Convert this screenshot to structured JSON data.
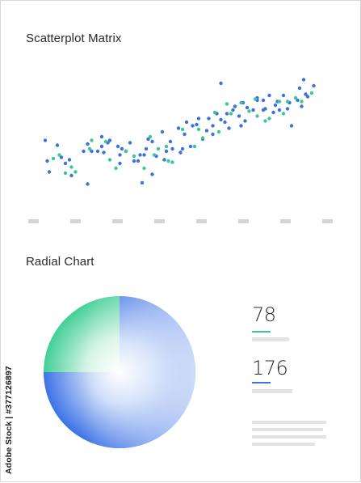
{
  "scatter": {
    "title": "Scatterplot Matrix",
    "colors": {
      "blue": "#3a72e0",
      "green": "#3cc894",
      "tick": "#d4d4d4"
    }
  },
  "radial": {
    "title": "Radial Chart",
    "colors": {
      "green": "#43cf96",
      "blue": "#3d72e6"
    }
  },
  "metrics": [
    {
      "value": "78",
      "color": "#3cc894"
    },
    {
      "value": "176",
      "color": "#3a72e0"
    }
  ],
  "watermark": "Adobe Stock | #377126897",
  "chart_data": {
    "type": "scatter",
    "xlabel": "",
    "ylabel": "",
    "grid": false,
    "series": [
      {
        "color": "blue",
        "x": [
          8,
          9,
          10,
          14,
          16,
          18,
          20,
          21,
          27,
          29,
          29,
          31,
          34,
          36,
          36,
          37,
          39,
          40,
          44,
          45,
          45,
          46,
          48,
          50,
          52,
          54,
          55,
          56,
          57,
          58,
          59,
          61,
          61,
          63,
          66,
          67,
          68,
          70,
          71,
          74,
          75,
          76,
          77,
          78,
          80,
          81,
          83,
          84,
          86,
          88,
          89,
          91,
          91,
          93,
          95,
          95,
          97,
          98,
          99,
          101,
          102,
          104,
          105,
          106,
          107,
          108,
          111,
          113,
          113,
          116,
          116,
          117,
          119,
          121,
          122,
          123,
          124,
          126,
          128,
          129,
          130,
          133,
          134,
          135,
          136,
          137,
          138,
          141
        ],
        "y": [
          47,
          30,
          21,
          43,
          33,
          28,
          31,
          18,
          38,
          44,
          11,
          38,
          38,
          50,
          42,
          37,
          45,
          47,
          42,
          28,
          35,
          40,
          38,
          45,
          30,
          30,
          35,
          12,
          35,
          40,
          48,
          19,
          46,
          34,
          54,
          31,
          38,
          46,
          40,
          57,
          37,
          40,
          52,
          62,
          42,
          59,
          60,
          65,
          48,
          55,
          65,
          59,
          52,
          69,
          64,
          94,
          62,
          69,
          57,
          72,
          75,
          67,
          59,
          78,
          63,
          74,
          72,
          82,
          80,
          72,
          80,
          73,
          84,
          70,
          76,
          79,
          72,
          84,
          73,
          78,
          59,
          80,
          90,
          75,
          97,
          85,
          83,
          92
        ]
      },
      {
        "color": "green",
        "x": [
          12,
          15,
          18,
          21,
          23,
          30,
          31,
          38,
          40,
          43,
          48,
          52,
          57,
          60,
          62,
          64,
          68,
          69,
          71,
          76,
          82,
          84,
          86,
          92,
          94,
          98,
          100,
          105,
          109,
          112,
          113,
          117,
          119,
          124,
          126,
          128,
          132,
          135,
          140
        ],
        "y": [
          32,
          35,
          20,
          25,
          21,
          40,
          47,
          46,
          31,
          24,
          38,
          34,
          24,
          50,
          35,
          40,
          42,
          30,
          29,
          56,
          42,
          56,
          49,
          70,
          54,
          77,
          69,
          78,
          71,
          81,
          67,
          63,
          65,
          79,
          69,
          79,
          82,
          79,
          86
        ]
      }
    ]
  },
  "radial_data": {
    "type": "pie",
    "values": [
      25,
      75
    ],
    "slices": [
      "green",
      "blue"
    ]
  }
}
